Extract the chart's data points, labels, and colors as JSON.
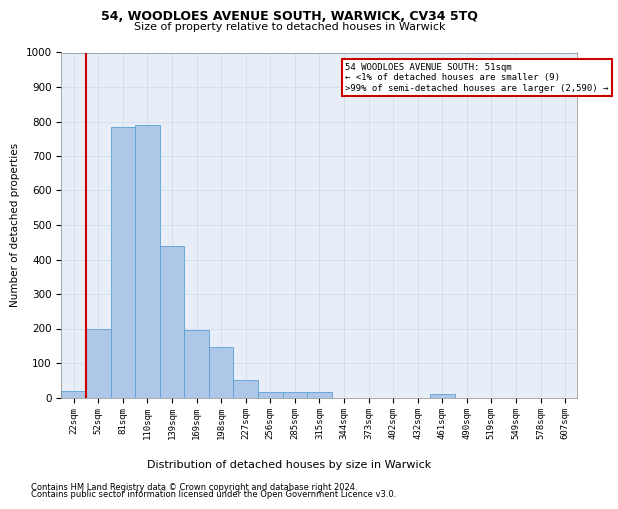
{
  "title1": "54, WOODLOES AVENUE SOUTH, WARWICK, CV34 5TQ",
  "title2": "Size of property relative to detached houses in Warwick",
  "xlabel": "Distribution of detached houses by size in Warwick",
  "ylabel": "Number of detached properties",
  "footer1": "Contains HM Land Registry data © Crown copyright and database right 2024.",
  "footer2": "Contains public sector information licensed under the Open Government Licence v3.0.",
  "annotation_line1": "54 WOODLOES AVENUE SOUTH: 51sqm",
  "annotation_line2": "← <1% of detached houses are smaller (9)",
  "annotation_line3": ">99% of semi-detached houses are larger (2,590) →",
  "bin_labels": [
    "22sqm",
    "52sqm",
    "81sqm",
    "110sqm",
    "139sqm",
    "169sqm",
    "198sqm",
    "227sqm",
    "256sqm",
    "285sqm",
    "315sqm",
    "344sqm",
    "373sqm",
    "402sqm",
    "432sqm",
    "461sqm",
    "490sqm",
    "519sqm",
    "549sqm",
    "578sqm",
    "607sqm"
  ],
  "bar_values": [
    20,
    200,
    785,
    790,
    440,
    195,
    145,
    50,
    15,
    15,
    15,
    0,
    0,
    0,
    0,
    10,
    0,
    0,
    0,
    0,
    0
  ],
  "bar_color": "#aec6e8",
  "bar_edge_color": "#5a9fd4",
  "ylim": [
    0,
    1000
  ],
  "yticks": [
    0,
    100,
    200,
    300,
    400,
    500,
    600,
    700,
    800,
    900,
    1000
  ],
  "grid_color": "#d0d8e8",
  "annotation_box_color": "#ffffff",
  "annotation_box_edge": "#cc0000",
  "vline_color": "#cc0000",
  "background_color": "#e8eef8"
}
